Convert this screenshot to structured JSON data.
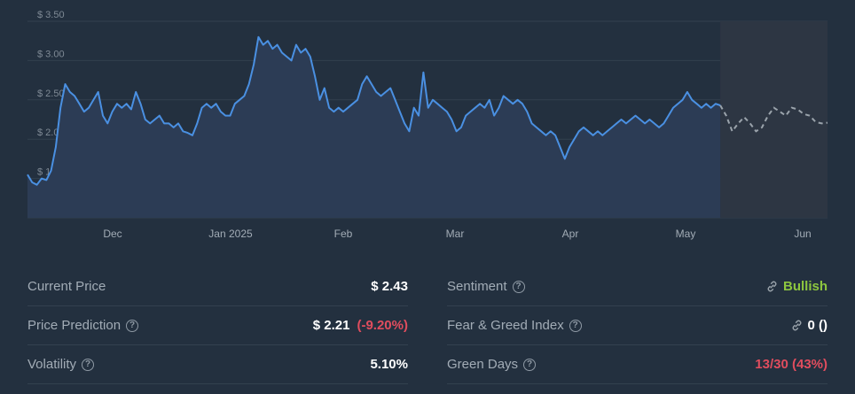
{
  "chart_data": {
    "type": "line",
    "y_ticks": [
      "$ 1.00",
      "$ 1.50",
      "$ 2.00",
      "$ 2.50",
      "$ 3.00",
      "$ 3.50"
    ],
    "y_tick_values": [
      1.0,
      1.5,
      2.0,
      2.5,
      3.0,
      3.5
    ],
    "x_ticks": [
      "Dec",
      "Jan 2025",
      "Feb",
      "Mar",
      "Apr",
      "May",
      "Jun"
    ],
    "ylim": [
      1.0,
      3.5
    ],
    "grid": true,
    "series": [
      {
        "kind": "historical",
        "values": [
          1.55,
          1.45,
          1.42,
          1.5,
          1.48,
          1.6,
          1.9,
          2.4,
          2.7,
          2.6,
          2.55,
          2.45,
          2.35,
          2.4,
          2.5,
          2.6,
          2.3,
          2.2,
          2.35,
          2.45,
          2.4,
          2.45,
          2.38,
          2.6,
          2.45,
          2.25,
          2.2,
          2.25,
          2.3,
          2.2,
          2.2,
          2.15,
          2.2,
          2.1,
          2.08,
          2.05,
          2.2,
          2.4,
          2.45,
          2.4,
          2.45,
          2.35,
          2.3,
          2.3,
          2.45,
          2.5,
          2.55,
          2.7,
          2.95,
          3.3,
          3.2,
          3.25,
          3.15,
          3.2,
          3.1,
          3.05,
          3.0,
          3.2,
          3.1,
          3.15,
          3.05,
          2.8,
          2.5,
          2.65,
          2.4,
          2.35,
          2.4,
          2.35,
          2.4,
          2.45,
          2.5,
          2.7,
          2.8,
          2.7,
          2.6,
          2.55,
          2.6,
          2.65,
          2.5,
          2.35,
          2.2,
          2.1,
          2.4,
          2.3,
          2.85,
          2.4,
          2.5,
          2.45,
          2.4,
          2.35,
          2.25,
          2.1,
          2.15,
          2.3,
          2.35,
          2.4,
          2.45,
          2.4,
          2.5,
          2.3,
          2.4,
          2.55,
          2.5,
          2.45,
          2.5,
          2.45,
          2.35,
          2.2,
          2.15,
          2.1,
          2.05,
          2.1,
          2.05,
          1.9,
          1.75,
          1.9,
          2.0,
          2.1,
          2.15,
          2.1,
          2.05,
          2.1,
          2.05,
          2.1,
          2.15,
          2.2,
          2.25,
          2.2,
          2.25,
          2.3,
          2.25,
          2.2,
          2.25,
          2.2,
          2.15,
          2.2,
          2.3,
          2.4,
          2.45,
          2.5,
          2.6,
          2.5,
          2.45,
          2.4,
          2.45,
          2.4,
          2.45,
          2.43
        ]
      },
      {
        "kind": "prediction",
        "values": [
          2.43,
          2.3,
          2.1,
          2.2,
          2.28,
          2.2,
          2.1,
          2.15,
          2.3,
          2.4,
          2.35,
          2.3,
          2.4,
          2.38,
          2.32,
          2.3,
          2.22,
          2.2,
          2.21
        ]
      }
    ],
    "prediction_start_fraction": 0.866
  },
  "stats": {
    "current_price_label": "Current Price",
    "current_price_value": "$ 2.43",
    "prediction_label": "Price Prediction",
    "prediction_value": "$ 2.21",
    "prediction_change": "(-9.20%)",
    "volatility_label": "Volatility",
    "volatility_value": "5.10%",
    "sentiment_label": "Sentiment",
    "sentiment_value": "Bullish",
    "fear_greed_label": "Fear & Greed Index",
    "fear_greed_value": "0 ()",
    "green_days_label": "Green Days",
    "green_days_value": "13/30 (43%)"
  },
  "colors": {
    "line": "#4a90e2",
    "prediction": "#9aa3ab",
    "area": "#2c3c55",
    "prediction_area": "#2d3643",
    "grid": "#33414f",
    "down": "#e04d5e",
    "bullish": "#8dc63f"
  }
}
